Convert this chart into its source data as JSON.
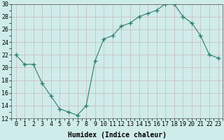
{
  "x": [
    0,
    1,
    2,
    3,
    4,
    5,
    6,
    7,
    8,
    9,
    10,
    11,
    12,
    13,
    14,
    15,
    16,
    17,
    18,
    19,
    20,
    21,
    22,
    23
  ],
  "y": [
    22,
    20.5,
    20.5,
    17.5,
    15.5,
    13.5,
    13,
    12.5,
    14,
    21,
    24.5,
    25,
    26.5,
    27,
    28,
    28.5,
    29,
    30,
    30,
    28,
    27,
    25,
    22,
    21.5
  ],
  "line_color": "#2e7d6e",
  "marker": "+",
  "marker_size": 4,
  "bg_color": "#ceecea",
  "grid_color_major": "#c8b8b8",
  "grid_color_minor": "#dde8e8",
  "xlabel": "Humidex (Indice chaleur)",
  "xlabel_fontsize": 7,
  "tick_fontsize": 6,
  "ylim": [
    12,
    30
  ],
  "yticks": [
    12,
    14,
    16,
    18,
    20,
    22,
    24,
    26,
    28,
    30
  ],
  "xticks": [
    0,
    1,
    2,
    3,
    4,
    5,
    6,
    7,
    8,
    9,
    10,
    11,
    12,
    13,
    14,
    15,
    16,
    17,
    18,
    19,
    20,
    21,
    22,
    23
  ],
  "xtick_labels": [
    "0",
    "1",
    "2",
    "3",
    "4",
    "5",
    "6",
    "7",
    "8",
    "9",
    "10",
    "11",
    "12",
    "13",
    "14",
    "15",
    "16",
    "17",
    "18",
    "19",
    "20",
    "21",
    "22",
    "23"
  ]
}
